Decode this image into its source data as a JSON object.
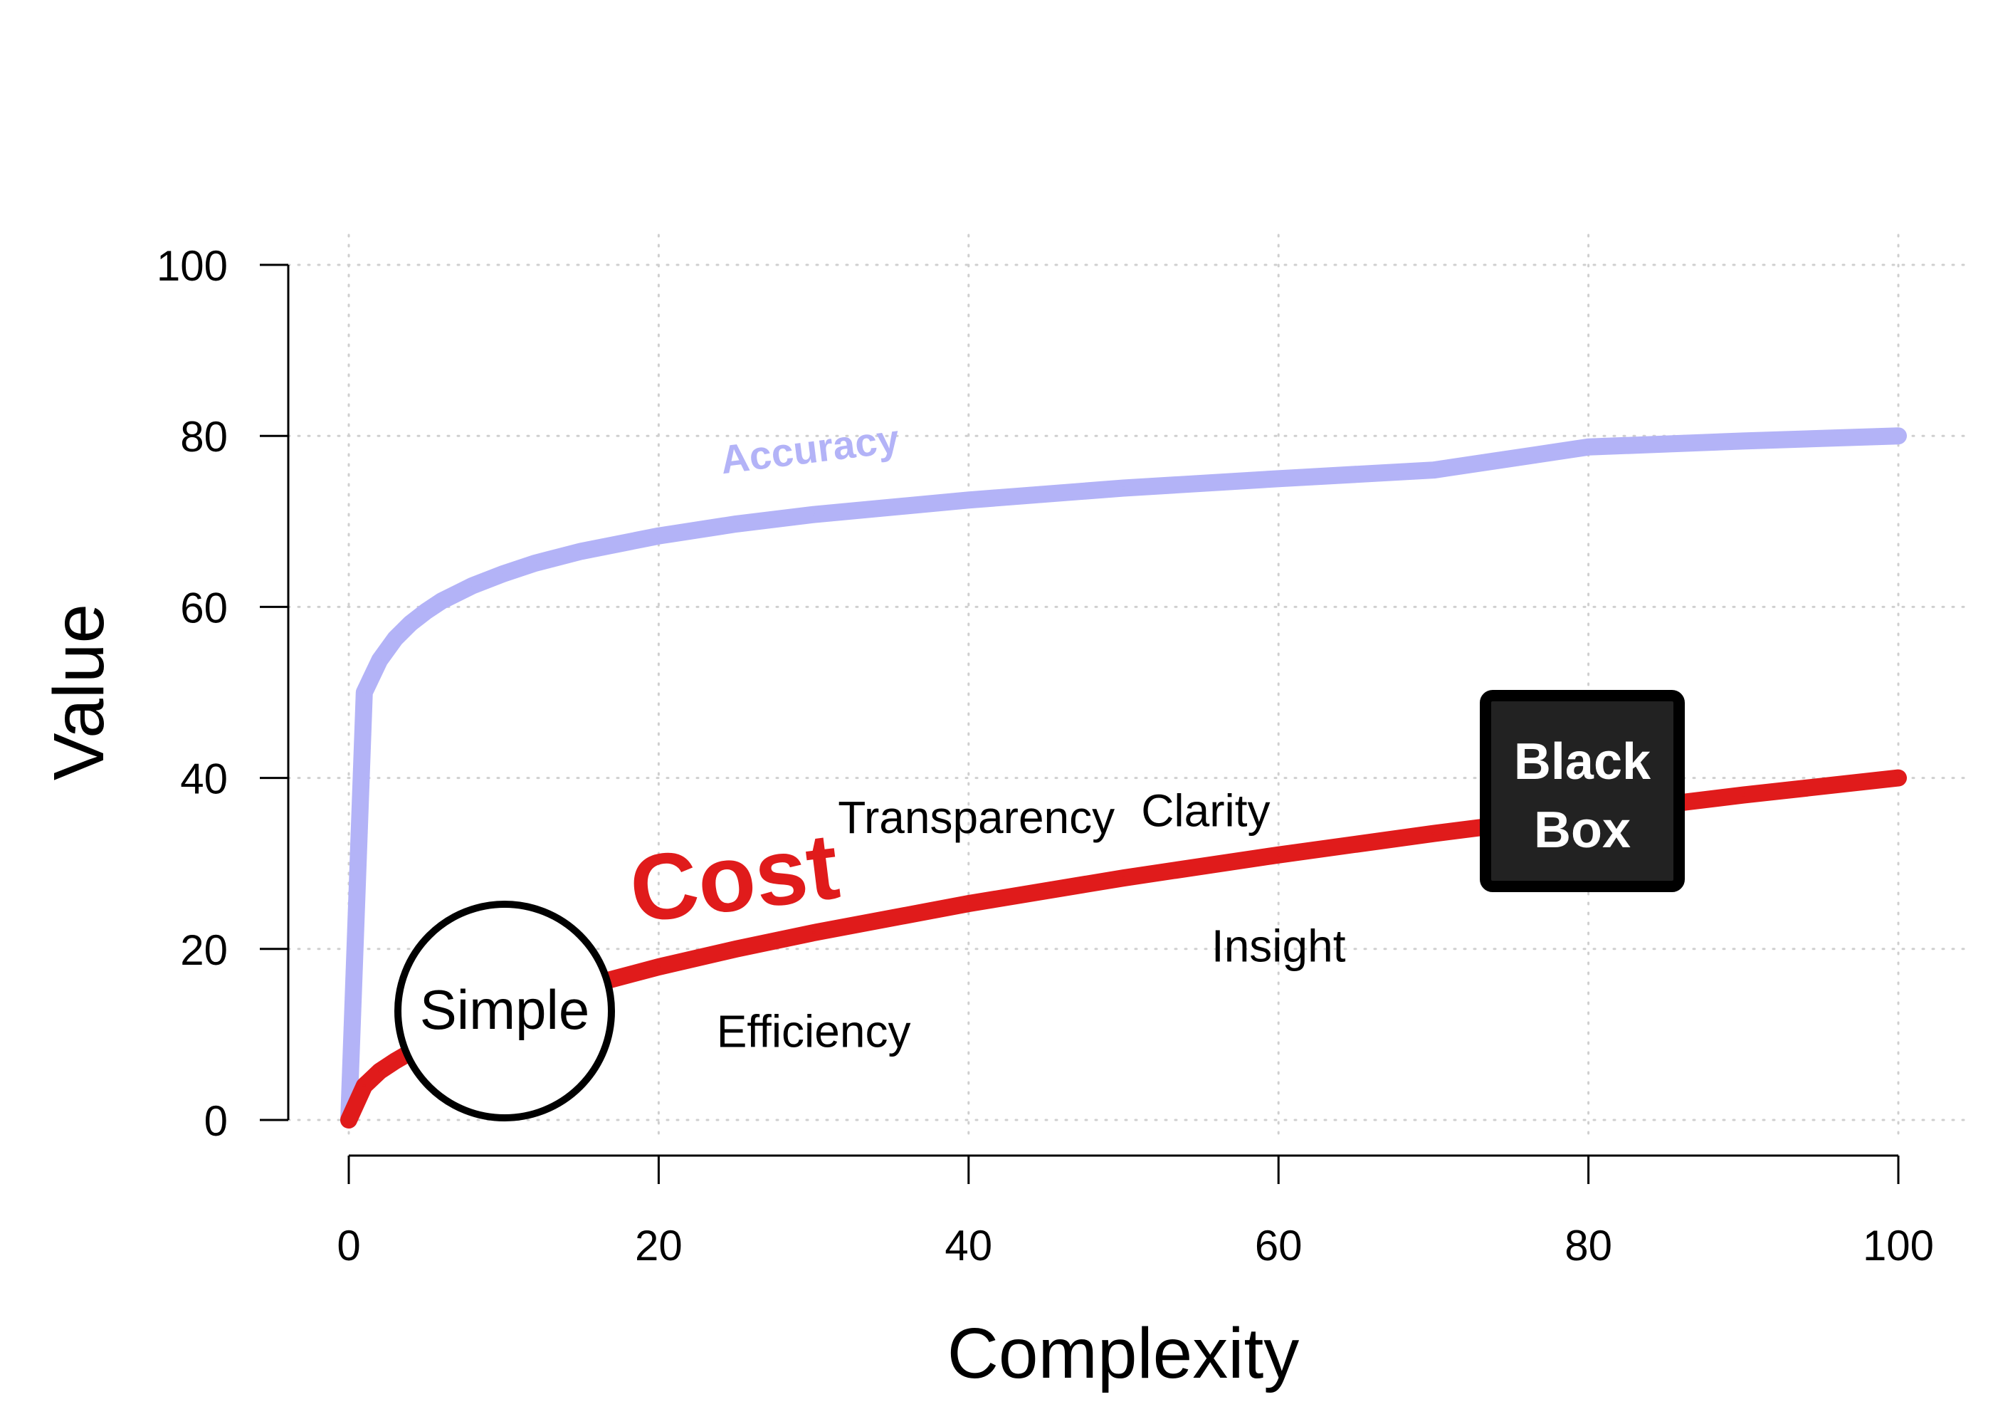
{
  "chart_data": {
    "type": "line",
    "xlabel": "Complexity",
    "ylabel": "Value",
    "xlim": [
      0,
      100
    ],
    "ylim": [
      0,
      100
    ],
    "xticks": [
      0,
      20,
      40,
      60,
      80,
      100
    ],
    "yticks": [
      0,
      20,
      40,
      60,
      80,
      100
    ],
    "xtick_labels": [
      "0",
      "20",
      "40",
      "60",
      "80",
      "100"
    ],
    "ytick_labels": [
      "0",
      "20",
      "40",
      "60",
      "80",
      "100"
    ],
    "grid": true,
    "series": [
      {
        "name": "Accuracy",
        "color": "#b3b3f7",
        "x": [
          0,
          1,
          2,
          3,
          4,
          5,
          6,
          8,
          10,
          12,
          15,
          20,
          25,
          30,
          40,
          50,
          60,
          70,
          80,
          90,
          100
        ],
        "values": [
          0,
          50,
          53.8,
          56.3,
          58.1,
          59.5,
          60.7,
          62.5,
          63.9,
          65.1,
          66.5,
          68.3,
          69.7,
          70.8,
          72.5,
          73.9,
          75.0,
          76.0,
          78.7,
          79.4,
          80
        ]
      },
      {
        "name": "Cost",
        "color": "#e01b1b",
        "x": [
          0,
          1,
          2,
          3,
          5,
          8,
          10,
          15,
          20,
          25,
          30,
          40,
          50,
          60,
          70,
          80,
          90,
          100
        ],
        "values": [
          0,
          4,
          5.7,
          6.9,
          9.0,
          11.3,
          12.6,
          15.5,
          17.9,
          20.0,
          21.9,
          25.3,
          28.3,
          31.0,
          33.5,
          35.8,
          38.0,
          40
        ]
      }
    ],
    "labels": {
      "accuracy": "Accuracy",
      "cost": "Cost",
      "simple": "Simple",
      "black_box_line1": "Black",
      "black_box_line2": "Box",
      "transparency": "Transparency",
      "clarity": "Clarity",
      "insight": "Insight",
      "efficiency": "Efficiency"
    },
    "annotations": [
      {
        "key": "transparency",
        "x": 40.5,
        "y": 35.2
      },
      {
        "key": "clarity",
        "x": 55.3,
        "y": 36.0
      },
      {
        "key": "insight",
        "x": 60.0,
        "y": 20.2
      },
      {
        "key": "efficiency",
        "x": 30.0,
        "y": 10.2
      }
    ]
  }
}
